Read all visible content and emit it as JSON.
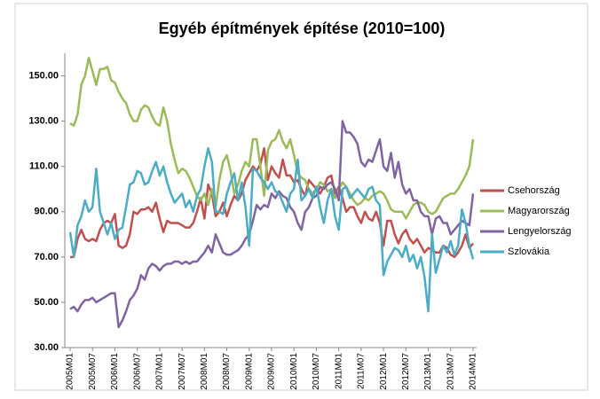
{
  "chart_data": {
    "type": "line",
    "title": "Egyéb építmények építése (2010=100)",
    "categories": [
      "2005M01",
      null,
      null,
      null,
      null,
      null,
      "2005M07",
      null,
      null,
      null,
      null,
      null,
      "2006M01",
      null,
      null,
      null,
      null,
      null,
      "2006M07",
      null,
      null,
      null,
      null,
      null,
      "2007M01",
      null,
      null,
      null,
      null,
      null,
      "2007M07",
      null,
      null,
      null,
      null,
      null,
      "2008M01",
      null,
      null,
      null,
      null,
      null,
      "2008M07",
      null,
      null,
      null,
      null,
      null,
      "2009M01",
      null,
      null,
      null,
      null,
      null,
      "2009M07",
      null,
      null,
      null,
      null,
      null,
      "2010M01",
      null,
      null,
      null,
      null,
      null,
      "2010M07",
      null,
      null,
      null,
      null,
      null,
      "2011M01",
      null,
      null,
      null,
      null,
      null,
      "2011M07",
      null,
      null,
      null,
      null,
      null,
      "2012M01",
      null,
      null,
      null,
      null,
      null,
      "2012M07",
      null,
      null,
      null,
      null,
      null,
      "2013M01",
      null,
      null,
      null,
      null,
      null,
      "2013M07",
      null,
      null,
      null,
      null,
      null,
      "2014M01"
    ],
    "series": [
      {
        "name": "Csehország",
        "color": "#c0504d",
        "values": [
          70,
          70,
          78,
          82,
          78,
          77,
          78,
          77,
          82,
          85,
          86,
          85,
          89,
          75,
          74,
          75,
          80,
          90,
          89,
          91,
          91,
          92,
          90,
          94,
          87,
          81,
          86,
          85,
          85,
          85,
          84,
          83,
          83,
          85,
          90,
          96,
          87,
          102,
          98,
          88,
          90,
          94,
          88,
          93,
          97,
          95,
          98,
          104,
          107,
          110,
          108,
          111,
          118,
          104,
          110,
          107,
          105,
          113,
          106,
          106,
          103,
          104,
          100,
          97,
          104,
          102,
          100,
          98,
          101,
          105,
          106,
          98,
          101,
          96,
          90,
          92,
          92,
          88,
          85,
          90,
          87,
          86,
          90,
          85,
          75,
          86,
          86,
          80,
          76,
          80,
          82,
          78,
          76,
          78,
          75,
          72,
          74,
          73,
          72,
          72,
          75,
          74,
          71,
          70,
          72,
          75,
          80,
          74,
          76
        ]
      },
      {
        "name": "Magyarország",
        "color": "#9bbb59",
        "values": [
          129,
          128,
          133,
          146,
          150,
          158,
          152,
          146,
          153,
          153,
          154,
          148,
          147,
          143,
          140,
          138,
          133,
          130,
          130,
          135,
          137,
          136,
          132,
          129,
          128,
          136,
          130,
          120,
          113,
          107,
          109,
          108,
          105,
          101,
          97,
          95,
          98,
          93,
          100,
          92,
          104,
          112,
          115,
          108,
          98,
          102,
          108,
          112,
          110,
          122,
          122,
          110,
          97,
          117,
          121,
          122,
          126,
          121,
          118,
          122,
          115,
          107,
          105,
          104,
          100,
          98,
          100,
          103,
          102,
          99,
          100,
          96,
          100,
          103,
          101,
          98,
          95,
          93,
          94,
          96,
          95,
          97,
          98,
          99,
          98,
          95,
          91,
          90,
          90,
          90,
          87,
          90,
          93,
          94,
          94,
          93,
          90,
          89,
          90,
          93,
          96,
          97,
          98,
          98,
          100,
          103,
          106,
          110,
          122
        ]
      },
      {
        "name": "Lengyelország",
        "color": "#8064a2",
        "values": [
          47,
          48,
          46,
          49,
          51,
          51,
          52,
          50,
          51,
          52,
          53,
          54,
          54,
          39,
          42,
          46,
          51,
          53,
          56,
          62,
          60,
          65,
          67,
          66,
          64,
          66,
          67,
          67,
          68,
          68,
          67,
          68,
          67,
          68,
          68,
          70,
          72,
          75,
          72,
          80,
          76,
          72,
          71,
          71,
          72,
          73,
          75,
          78,
          80,
          86,
          93,
          91,
          93,
          92,
          98,
          96,
          99,
          97,
          96,
          92,
          90,
          85,
          82,
          90,
          92,
          96,
          97,
          101,
          100,
          102,
          103,
          100,
          95,
          130,
          125,
          125,
          123,
          120,
          112,
          110,
          113,
          112,
          117,
          122,
          110,
          108,
          116,
          105,
          112,
          102,
          98,
          100,
          95,
          95,
          90,
          88,
          88,
          80,
          87,
          88,
          85,
          85,
          80,
          82,
          84,
          86,
          85,
          84,
          98
        ]
      },
      {
        "name": "Szlovákia",
        "color": "#4bacc6",
        "values": [
          81,
          70,
          84,
          88,
          95,
          90,
          92,
          109,
          90,
          85,
          80,
          85,
          78,
          82,
          83,
          92,
          102,
          103,
          108,
          107,
          102,
          103,
          108,
          112,
          106,
          110,
          103,
          98,
          94,
          96,
          98,
          92,
          95,
          90,
          97,
          100,
          110,
          118,
          112,
          90,
          90,
          89,
          98,
          103,
          107,
          95,
          103,
          92,
          75,
          109,
          108,
          105,
          103,
          100,
          103,
          99,
          98,
          94,
          90,
          98,
          100,
          113,
          95,
          97,
          100,
          96,
          101,
          92,
          85,
          95,
          100,
          88,
          82,
          100,
          101,
          96,
          98,
          100,
          98,
          96,
          100,
          101,
          95,
          93,
          62,
          68,
          71,
          74,
          73,
          70,
          75,
          68,
          71,
          65,
          70,
          61,
          46,
          80,
          63,
          69,
          75,
          72,
          77,
          71,
          75,
          91,
          85,
          75,
          69
        ]
      }
    ],
    "ylim": [
      30,
      160
    ],
    "yticks": [
      {
        "value": 30,
        "label": "30.00"
      },
      {
        "value": 50,
        "label": "50.00"
      },
      {
        "value": 70,
        "label": "70.00"
      },
      {
        "value": 90,
        "label": "90.00"
      },
      {
        "value": 110,
        "label": "110.00"
      },
      {
        "value": 130,
        "label": "130.00"
      },
      {
        "value": 150,
        "label": "150.00"
      }
    ],
    "grid": false,
    "legend": "right"
  }
}
